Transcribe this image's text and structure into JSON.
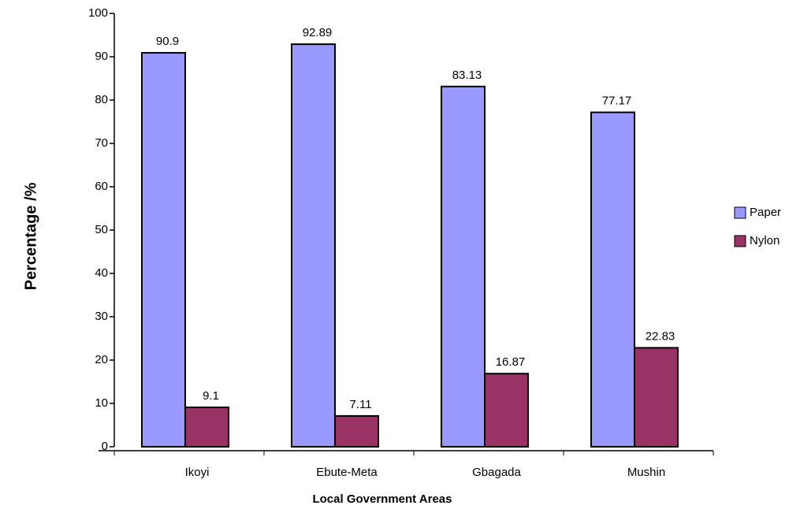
{
  "chart_data": {
    "type": "bar",
    "xlabel": "Local Government Areas",
    "ylabel": "Percentage /%",
    "categories": [
      "Ikoyi",
      "Ebute-Meta",
      "Gbagada",
      "Mushin"
    ],
    "series": [
      {
        "name": "Paper",
        "color": "#9999ff",
        "values": [
          90.9,
          92.89,
          83.13,
          77.17
        ]
      },
      {
        "name": "Nylon",
        "color": "#993366",
        "values": [
          9.1,
          7.11,
          16.87,
          22.83
        ]
      }
    ],
    "ylim": [
      0,
      100
    ],
    "yticks": [
      0,
      10,
      20,
      30,
      40,
      50,
      60,
      70,
      80,
      90,
      100
    ],
    "legend": "right"
  }
}
